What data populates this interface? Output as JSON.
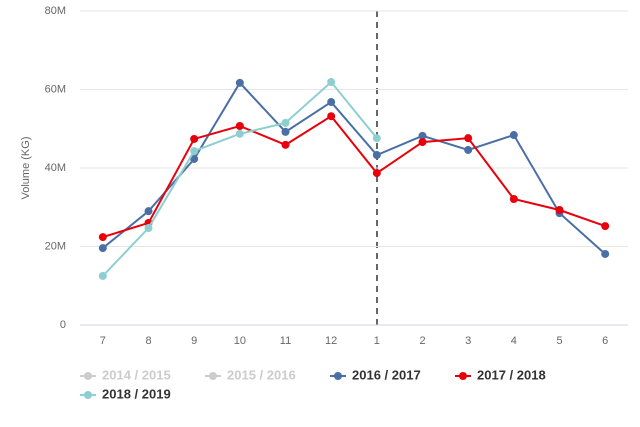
{
  "chart_data": {
    "type": "line",
    "y_label": "Volume (KG)",
    "categories": [
      "7",
      "8",
      "9",
      "10",
      "11",
      "12",
      "1",
      "2",
      "3",
      "4",
      "5",
      "6"
    ],
    "ylim": [
      0,
      80000000
    ],
    "yticks": [
      0,
      {
        "value": 20000000,
        "label": "20M"
      },
      {
        "value": 40000000,
        "label": "40M"
      },
      {
        "value": 60000000,
        "label": "60M"
      },
      {
        "value": 80000000,
        "label": "80M"
      }
    ],
    "grid": true,
    "legend": "bottom",
    "series": [
      {
        "name": "2014 / 2015",
        "color": "#cccccc",
        "visible": false,
        "values": [
          null,
          null,
          null,
          null,
          null,
          null,
          null,
          null,
          null,
          null,
          null,
          null
        ]
      },
      {
        "name": "2015 / 2016",
        "color": "#cccccc",
        "visible": false,
        "values": [
          null,
          null,
          null,
          null,
          null,
          null,
          null,
          null,
          null,
          null,
          null,
          null
        ]
      },
      {
        "name": "2016 / 2017",
        "color": "#4a6fa5",
        "visible": true,
        "values": [
          19600000,
          29000000,
          42300000,
          61700000,
          49200000,
          56800000,
          43300000,
          48200000,
          44600000,
          48400000,
          28500000,
          18100000
        ]
      },
      {
        "name": "2017 / 2018",
        "color": "#e8000b",
        "visible": true,
        "values": [
          22400000,
          26000000,
          47400000,
          50700000,
          45900000,
          53200000,
          38700000,
          46600000,
          47600000,
          32100000,
          29300000,
          25200000
        ]
      },
      {
        "name": "2018 / 2019",
        "color": "#8dcfd0",
        "visible": true,
        "values": [
          12500000,
          24700000,
          44300000,
          48700000,
          51500000,
          61900000,
          47600000,
          null,
          null,
          null,
          null,
          null
        ]
      }
    ]
  }
}
